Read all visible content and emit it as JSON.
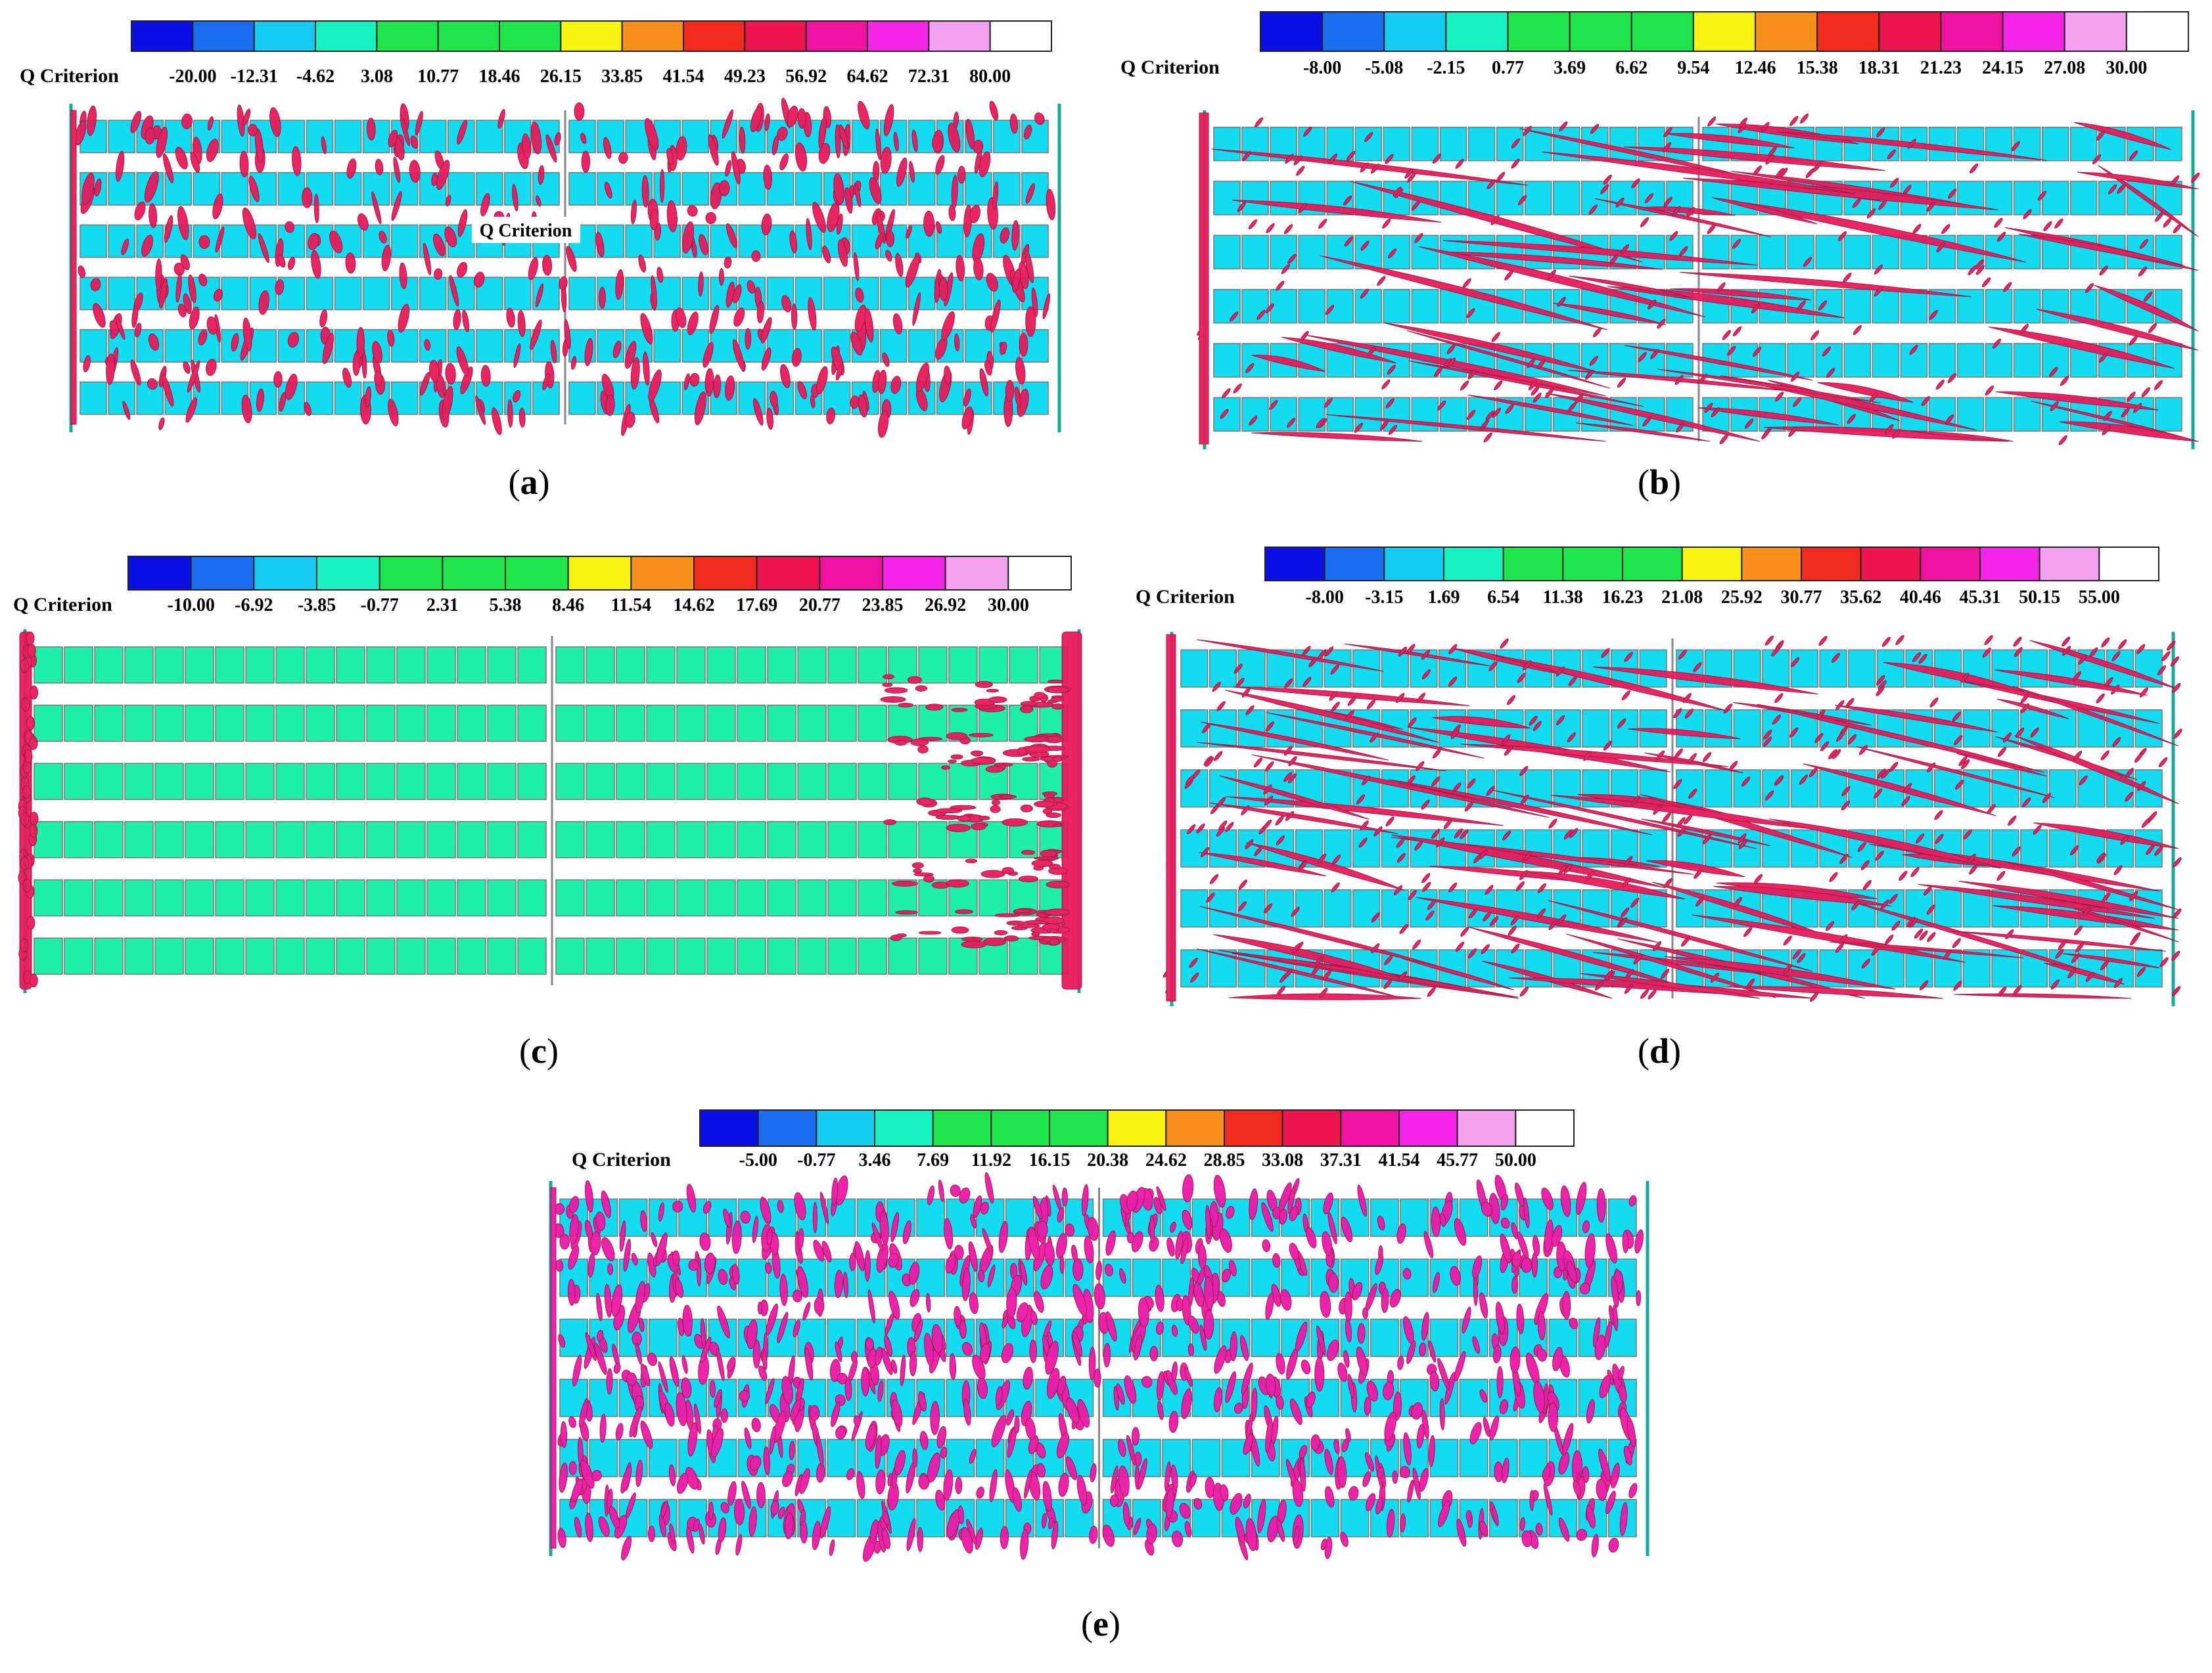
{
  "colors": {
    "scale": [
      "#0a10e6",
      "#1a6cf0",
      "#14ccf2",
      "#18f2c0",
      "#1ee64a",
      "#1ee64a",
      "#1ee64a",
      "#f8f412",
      "#f6901a",
      "#f22a1e",
      "#ee1450",
      "#f012a0",
      "#f424e8",
      "#f4a0f0",
      "#ffffff"
    ],
    "cyan_tile": "#14dcf0",
    "green_tile": "#1ef0a8",
    "vortex_red": "#e81a5a",
    "vortex_magenta": "#ee18a8",
    "outline": "#777777"
  },
  "panels": [
    {
      "id": "a",
      "caption": "a",
      "legend_title": "Q Criterion",
      "ticks": [
        "-20.00",
        "-12.31",
        "-4.62",
        "3.08",
        "10.77",
        "18.46",
        "26.15",
        "33.85",
        "41.54",
        "49.23",
        "56.92",
        "64.62",
        "72.31",
        "80.00"
      ],
      "overlay_label": "Q Criterion",
      "tile": "cyan_tile",
      "vortex": "vortex_red",
      "density": 0.55,
      "style": "vertical"
    },
    {
      "id": "b",
      "caption": "b",
      "legend_title": "Q Criterion",
      "ticks": [
        "-8.00",
        "-5.08",
        "-2.15",
        "0.77",
        "3.69",
        "6.62",
        "9.54",
        "12.46",
        "15.38",
        "18.31",
        "21.23",
        "24.15",
        "27.08",
        "30.00"
      ],
      "tile": "cyan_tile",
      "vortex": "vortex_red",
      "density": 0.5,
      "style": "diagonal"
    },
    {
      "id": "c",
      "caption": "c",
      "legend_title": "Q Criterion",
      "ticks": [
        "-10.00",
        "-6.92",
        "-3.85",
        "-0.77",
        "2.31",
        "5.38",
        "8.46",
        "11.54",
        "14.62",
        "17.69",
        "20.77",
        "23.85",
        "26.92",
        "30.00"
      ],
      "tile": "green_tile",
      "vortex": "vortex_red",
      "density": 0.08,
      "style": "edge"
    },
    {
      "id": "d",
      "caption": "d",
      "legend_title": "Q Criterion",
      "ticks": [
        "-8.00",
        "-3.15",
        "1.69",
        "6.54",
        "11.38",
        "16.23",
        "21.08",
        "25.92",
        "30.77",
        "35.62",
        "40.46",
        "45.31",
        "50.15",
        "55.00"
      ],
      "tile": "cyan_tile",
      "vortex": "vortex_red",
      "density": 0.75,
      "style": "diagonal"
    },
    {
      "id": "e",
      "caption": "e",
      "legend_title": "Q Criterion",
      "ticks": [
        "-5.00",
        "-0.77",
        "3.46",
        "7.69",
        "11.92",
        "16.15",
        "20.38",
        "24.62",
        "28.85",
        "33.08",
        "37.31",
        "41.54",
        "45.77",
        "50.00"
      ],
      "tile": "cyan_tile",
      "vortex": "vortex_magenta",
      "density": 0.9,
      "style": "vertical"
    }
  ]
}
